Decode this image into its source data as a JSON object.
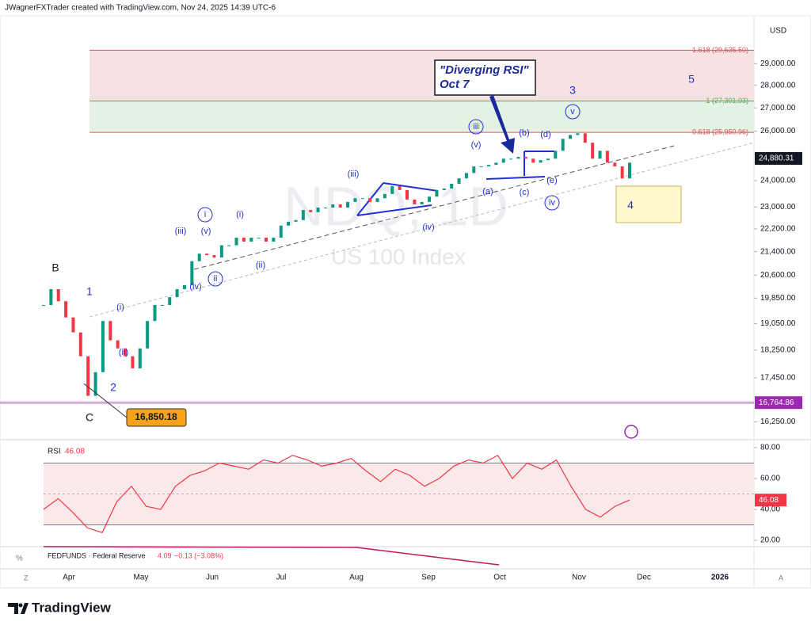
{
  "header": {
    "credit": "JWagnerFXTrader created with TradingView.com, Nov 24, 2025 14:39 UTC-6",
    "currency": "USD",
    "logo": "TradingView",
    "percent": "%",
    "zoom_left": "Z",
    "zoom_right": "A"
  },
  "chart_data": [
    {
      "type": "candlestick",
      "title": "NDQ, 1D",
      "subtitle": "US 100 Index",
      "log": true,
      "values": [
        19630,
        20140,
        19750,
        19240,
        18780,
        18070,
        16950,
        17610,
        19130,
        18540,
        18300,
        18070,
        17720,
        18300,
        19130,
        19630,
        19630,
        19880,
        20140,
        20270,
        21070,
        21330,
        21280,
        21200,
        21620,
        21620,
        21890,
        21750,
        21890,
        21890,
        21750,
        21890,
        22320,
        22460,
        22520,
        22890,
        22810,
        22980,
        22980,
        23100,
        22980,
        23190,
        23330,
        23330,
        23190,
        23330,
        23490,
        23790,
        23640,
        23280,
        23100,
        23190,
        23390,
        23640,
        23700,
        23880,
        24090,
        24300,
        24560,
        24560,
        24620,
        24710,
        24870,
        24870,
        24940,
        24870,
        24710,
        24810,
        24870,
        25190,
        25680,
        25840,
        25910,
        25520,
        24870,
        25190,
        24710,
        24560,
        24090,
        24710
      ],
      "ylim": [
        15830,
        31330
      ],
      "yticks": [
        {
          "value": 29000,
          "label": "29,000.00"
        },
        {
          "value": 28000,
          "label": "28,000.00"
        },
        {
          "value": 27000,
          "label": "27,000.00"
        },
        {
          "value": 26000,
          "label": "26,000.00"
        },
        {
          "value": 24000,
          "label": "24,000.00"
        },
        {
          "value": 23000,
          "label": "23,000.00"
        },
        {
          "value": 22200,
          "label": "22,200.00"
        },
        {
          "value": 21400,
          "label": "21,400.00"
        },
        {
          "value": 20600,
          "label": "20,600.00"
        },
        {
          "value": 19850,
          "label": "19,850.00"
        },
        {
          "value": 19050,
          "label": "19,050.00"
        },
        {
          "value": 18250,
          "label": "18,250.00"
        },
        {
          "value": 17450,
          "label": "17,450.00"
        },
        {
          "value": 16250,
          "label": "16,250.00"
        }
      ],
      "x_labels": [
        "Apr",
        "May",
        "Jun",
        "Jul",
        "Aug",
        "Sep",
        "Oct",
        "Nov",
        "Dec",
        "2026"
      ],
      "levels": [
        {
          "value": 29635.5,
          "label": "1.618 (29,635.50)",
          "color": "#e0505a"
        },
        {
          "value": 27301.03,
          "label": "1 (27,301.03)",
          "color": "#4caf50"
        },
        {
          "value": 25950.96,
          "label": "0.618 (25,950.96)",
          "color": "#e0505a"
        }
      ],
      "last_price": {
        "value": 24880.31,
        "label": "24,880.31"
      },
      "low_line": {
        "value": 16764.86,
        "label": "16,764.86",
        "color": "#9c27b0"
      },
      "low_label": {
        "value": 16850.18,
        "label": "16,850.18"
      },
      "callout": [
        "\"Diverging RSI\"",
        "Oct 7"
      ],
      "annotations": [
        "B",
        "C",
        "1",
        "2",
        "(i)",
        "(ii)",
        "(iii)",
        "(iv)",
        "ii",
        "(v)",
        "i",
        "(i)",
        "(ii)",
        "(iii)",
        "(iv)",
        "iii",
        "(v)",
        "(a)",
        "(b)",
        "(c)",
        "(d)",
        "(e)",
        "iv",
        "v",
        "3",
        "5",
        "4"
      ]
    },
    {
      "type": "line",
      "title": "RSI",
      "value_label": "46.08",
      "color": "#f23645",
      "values": [
        40,
        47,
        38,
        28,
        25,
        45,
        55,
        42,
        40,
        55,
        62,
        65,
        70,
        68,
        66,
        72,
        70,
        75,
        72,
        68,
        70,
        73,
        65,
        58,
        66,
        62,
        55,
        60,
        68,
        72,
        70,
        75,
        60,
        70,
        66,
        72,
        55,
        40,
        35,
        42,
        46.08
      ],
      "ylim": [
        15.9,
        84.1
      ],
      "band": [
        30,
        70
      ],
      "midline": 50,
      "yticks": [
        {
          "value": 80,
          "label": "80.00"
        },
        {
          "value": 60,
          "label": "60.00"
        },
        {
          "value": 40,
          "label": "40.00"
        },
        {
          "value": 20,
          "label": "20.00"
        }
      ]
    }
  ],
  "fed": {
    "name": "FEDFUNDS · Federal Reserve",
    "value": "4.09",
    "change": "−0.13 (−3.08%)"
  }
}
